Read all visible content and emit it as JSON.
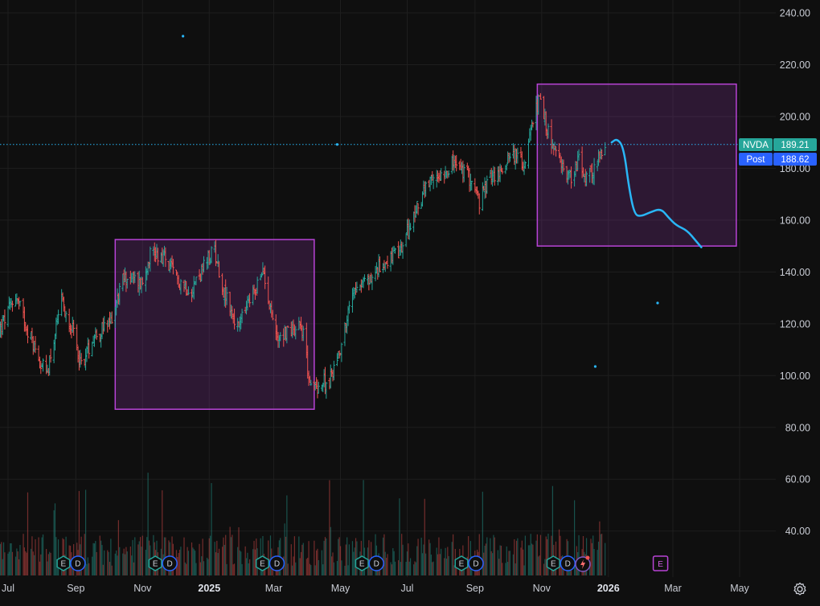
{
  "chart_data": {
    "type": "bar",
    "style": "ohlc",
    "ticker": "NVDA",
    "y_axis": {
      "range": [
        28,
        248
      ],
      "ticks": [
        "240.00",
        "220.00",
        "200.00",
        "180.00",
        "160.00",
        "140.00",
        "120.00",
        "100.00",
        "80.00",
        "60.00",
        "40.00"
      ]
    },
    "x_axis": {
      "ticks": [
        {
          "label": "Jul",
          "date": "2024-07",
          "bold": false
        },
        {
          "label": "Sep",
          "date": "2024-09",
          "bold": false
        },
        {
          "label": "Nov",
          "date": "2024-11",
          "bold": false
        },
        {
          "label": "2025",
          "date": "2025-01",
          "bold": true
        },
        {
          "label": "Mar",
          "date": "2025-03",
          "bold": false
        },
        {
          "label": "May",
          "date": "2025-05",
          "bold": false
        },
        {
          "label": "Jul",
          "date": "2025-07",
          "bold": false
        },
        {
          "label": "Sep",
          "date": "2025-09",
          "bold": false
        },
        {
          "label": "Nov",
          "date": "2025-11",
          "bold": false
        },
        {
          "label": "2026",
          "date": "2026-01",
          "bold": true
        },
        {
          "label": "Mar",
          "date": "2026-03",
          "bold": false
        },
        {
          "label": "May",
          "date": "2026-05",
          "bold": false
        }
      ]
    },
    "price_anchors": [
      [
        "2024-06-24",
        118
      ],
      [
        "2024-07-08",
        131
      ],
      [
        "2024-07-18",
        119
      ],
      [
        "2024-07-26",
        110
      ],
      [
        "2024-08-05",
        100
      ],
      [
        "2024-08-19",
        128
      ],
      [
        "2024-08-28",
        119
      ],
      [
        "2024-09-06",
        104
      ],
      [
        "2024-09-18",
        116
      ],
      [
        "2024-10-01",
        119
      ],
      [
        "2024-10-15",
        138
      ],
      [
        "2024-11-01",
        136
      ],
      [
        "2024-11-08",
        148
      ],
      [
        "2024-11-20",
        146
      ],
      [
        "2024-12-01",
        138
      ],
      [
        "2024-12-15",
        133
      ],
      [
        "2025-01-06",
        149
      ],
      [
        "2025-01-13",
        134
      ],
      [
        "2025-01-27",
        118
      ],
      [
        "2025-02-07",
        129
      ],
      [
        "2025-02-20",
        140
      ],
      [
        "2025-03-03",
        115
      ],
      [
        "2025-03-18",
        118
      ],
      [
        "2025-03-26",
        121
      ],
      [
        "2025-04-04",
        95
      ],
      [
        "2025-04-21",
        98
      ],
      [
        "2025-05-01",
        111
      ],
      [
        "2025-05-14",
        135
      ],
      [
        "2025-05-28",
        137
      ],
      [
        "2025-06-10",
        144
      ],
      [
        "2025-06-24",
        147
      ],
      [
        "2025-07-15",
        170
      ],
      [
        "2025-07-31",
        178
      ],
      [
        "2025-08-12",
        182
      ],
      [
        "2025-08-28",
        176
      ],
      [
        "2025-09-05",
        167
      ],
      [
        "2025-09-15",
        177
      ],
      [
        "2025-09-25",
        178
      ],
      [
        "2025-10-03",
        187
      ],
      [
        "2025-10-16",
        181
      ],
      [
        "2025-10-29",
        207
      ],
      [
        "2025-11-04",
        198
      ],
      [
        "2025-11-13",
        186
      ],
      [
        "2025-11-20",
        180
      ],
      [
        "2025-11-28",
        177
      ],
      [
        "2025-12-05",
        183
      ],
      [
        "2025-12-12",
        175
      ],
      [
        "2025-12-19",
        180
      ],
      [
        "2025-12-29",
        188
      ]
    ],
    "annotations": {
      "rectangles": [
        {
          "x0": "2024-10-07",
          "x1": "2025-04-07",
          "y0": 87,
          "y1": 152.5
        },
        {
          "x0": "2025-10-28",
          "x1": "2026-04-28",
          "y0": 150,
          "y1": 212.5
        }
      ],
      "forecast_path": [
        [
          "2026-01-04",
          190
        ],
        [
          "2026-01-09",
          191.5
        ],
        [
          "2026-01-15",
          188
        ],
        [
          "2026-01-20",
          172
        ],
        [
          "2026-01-25",
          162
        ],
        [
          "2026-01-31",
          161.5
        ],
        [
          "2026-02-08",
          163
        ],
        [
          "2026-02-18",
          164.5
        ],
        [
          "2026-02-25",
          161
        ],
        [
          "2026-03-04",
          158
        ],
        [
          "2026-03-14",
          156
        ],
        [
          "2026-03-22",
          152
        ],
        [
          "2026-03-27",
          149.5
        ]
      ],
      "dots": [
        {
          "date": "2024-12-08",
          "y": 231
        },
        {
          "date": "2025-04-28",
          "y": 189.2
        },
        {
          "date": "2025-12-20",
          "y": 103.5
        },
        {
          "date": "2026-02-15",
          "y": 128
        }
      ]
    },
    "last_price": {
      "label": "NVDA",
      "value": "189.21",
      "color": "#26a69a"
    },
    "post_price": {
      "label": "Post",
      "value": "188.62",
      "color": "#2962ff"
    },
    "events": [
      {
        "date": "2024-08-28",
        "letters": [
          "E",
          "D"
        ]
      },
      {
        "date": "2024-11-20",
        "letters": [
          "E",
          "D"
        ]
      },
      {
        "date": "2025-02-26",
        "letters": [
          "E",
          "D"
        ]
      },
      {
        "date": "2025-05-28",
        "letters": [
          "E",
          "D"
        ]
      },
      {
        "date": "2025-08-27",
        "letters": [
          "E",
          "D"
        ]
      },
      {
        "date": "2025-11-19",
        "letters": [
          "E",
          "D"
        ]
      },
      {
        "date": "2025-12-16",
        "letters": [
          "lightning"
        ]
      },
      {
        "date": "2026-02-25",
        "letters": [
          "E"
        ],
        "future": true
      }
    ],
    "colors": {
      "up": "#26a69a",
      "down": "#ef5350",
      "box": "#b843d6",
      "forecast": "#29b6f6",
      "bg": "#0f0f0f",
      "grid": "#1e1e1e"
    }
  }
}
